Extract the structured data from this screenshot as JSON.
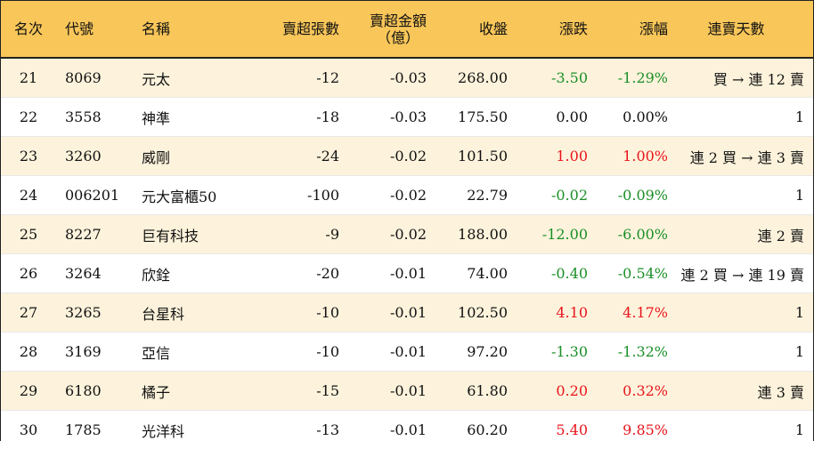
{
  "headers": {
    "rank": "名次",
    "code": "代號",
    "name": "名稱",
    "sheets": "賣超張數",
    "amount_line1": "賣超金額",
    "amount_line2": "（億）",
    "close": "收盤",
    "change": "漲跌",
    "pct": "漲幅",
    "streak": "連賣天數"
  },
  "rows": [
    {
      "rank": "21",
      "code": "8069",
      "name": "元太",
      "sheets": "-12",
      "amount": "-0.03",
      "close": "268.00",
      "change": "-3.50",
      "pct": "-1.29%",
      "direction": "down",
      "streak": "買 → 連 12 賣"
    },
    {
      "rank": "22",
      "code": "3558",
      "name": "神準",
      "sheets": "-18",
      "amount": "-0.03",
      "close": "175.50",
      "change": "0.00",
      "pct": "0.00%",
      "direction": "flat",
      "streak": "1"
    },
    {
      "rank": "23",
      "code": "3260",
      "name": "威剛",
      "sheets": "-24",
      "amount": "-0.02",
      "close": "101.50",
      "change": "1.00",
      "pct": "1.00%",
      "direction": "up",
      "streak": "連 2 買 → 連 3 賣"
    },
    {
      "rank": "24",
      "code": "006201",
      "name": "元大富櫃50",
      "sheets": "-100",
      "amount": "-0.02",
      "close": "22.79",
      "change": "-0.02",
      "pct": "-0.09%",
      "direction": "down",
      "streak": "1"
    },
    {
      "rank": "25",
      "code": "8227",
      "name": "巨有科技",
      "sheets": "-9",
      "amount": "-0.02",
      "close": "188.00",
      "change": "-12.00",
      "pct": "-6.00%",
      "direction": "down",
      "streak": "連 2 賣"
    },
    {
      "rank": "26",
      "code": "3264",
      "name": "欣銓",
      "sheets": "-20",
      "amount": "-0.01",
      "close": "74.00",
      "change": "-0.40",
      "pct": "-0.54%",
      "direction": "down",
      "streak": "連 2 買 → 連 19 賣"
    },
    {
      "rank": "27",
      "code": "3265",
      "name": "台星科",
      "sheets": "-10",
      "amount": "-0.01",
      "close": "102.50",
      "change": "4.10",
      "pct": "4.17%",
      "direction": "up",
      "streak": "1"
    },
    {
      "rank": "28",
      "code": "3169",
      "name": "亞信",
      "sheets": "-10",
      "amount": "-0.01",
      "close": "97.20",
      "change": "-1.30",
      "pct": "-1.32%",
      "direction": "down",
      "streak": "1"
    },
    {
      "rank": "29",
      "code": "6180",
      "name": "橘子",
      "sheets": "-15",
      "amount": "-0.01",
      "close": "61.80",
      "change": "0.20",
      "pct": "0.32%",
      "direction": "up",
      "streak": "連 3 賣"
    },
    {
      "rank": "30",
      "code": "1785",
      "name": "光洋科",
      "sheets": "-13",
      "amount": "-0.01",
      "close": "60.20",
      "change": "5.40",
      "pct": "9.85%",
      "direction": "up",
      "streak": "1"
    }
  ],
  "colors": {
    "header_bg": "#f8c659",
    "stripe_bg": "#fdf3dc",
    "up": "#e8141c",
    "down": "#1a8f27"
  }
}
